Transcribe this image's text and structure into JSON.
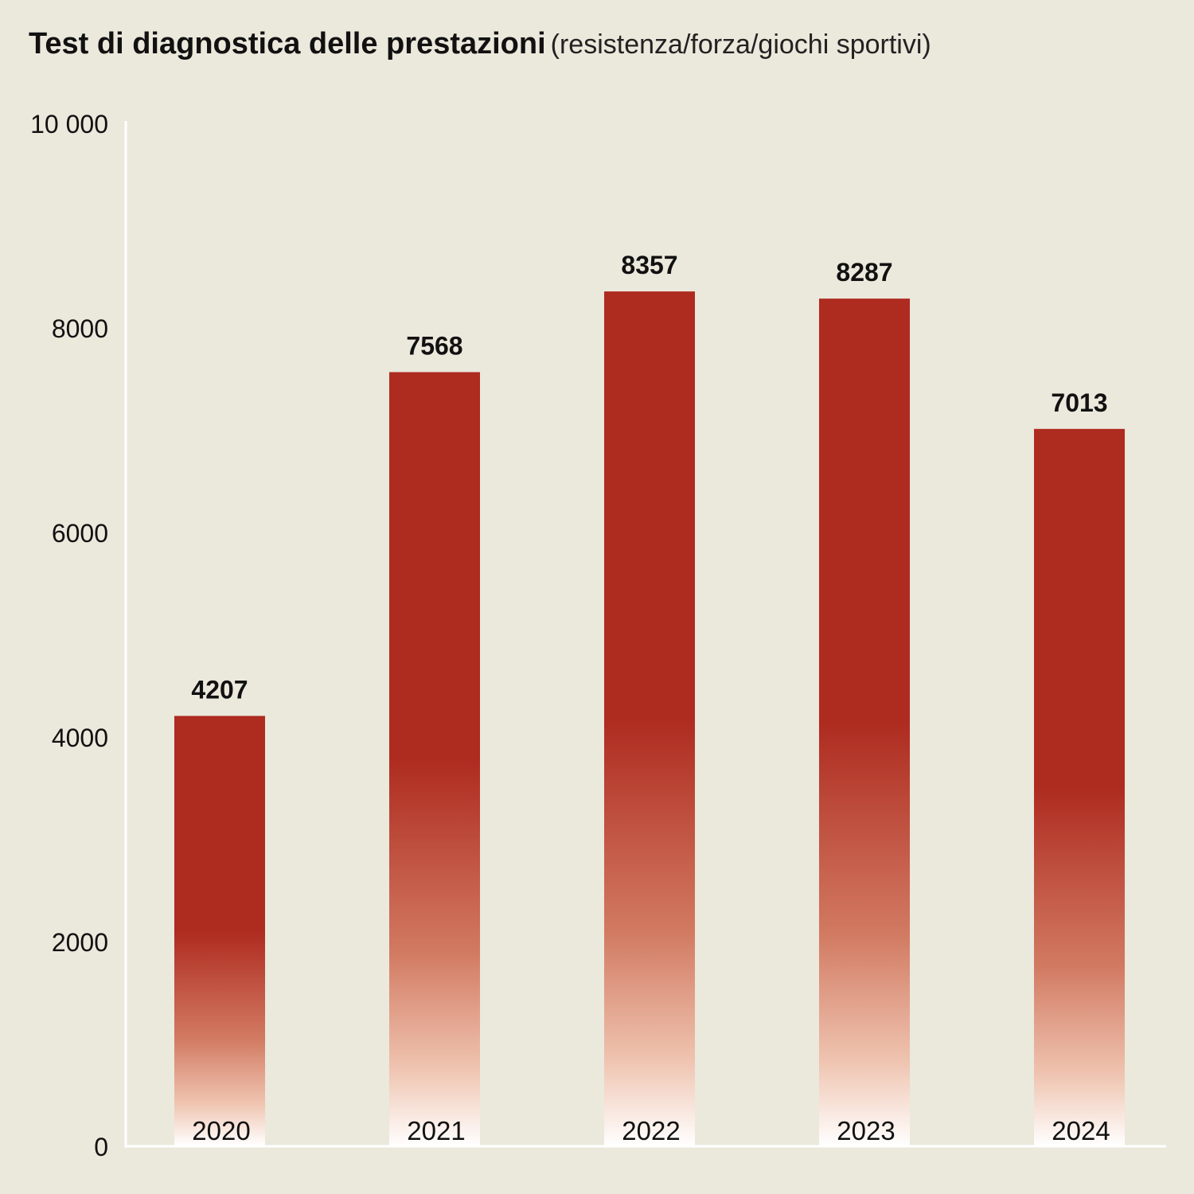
{
  "chart_data": {
    "type": "bar",
    "title": "Test di diagnostica delle prestazioni",
    "subtitle": "(resistenza/forza/giochi sportivi)",
    "categories": [
      "2020",
      "2021",
      "2022",
      "2023",
      "2024"
    ],
    "values": [
      4207,
      7568,
      8357,
      8287,
      7013
    ],
    "ylim": [
      0,
      10000
    ],
    "yticks": [
      0,
      2000,
      4000,
      6000,
      8000,
      10000
    ],
    "ytick_labels": [
      "0",
      "2000",
      "4000",
      "6000",
      "8000",
      "10 000"
    ],
    "xlabel": "",
    "ylabel": "",
    "grid": false,
    "legend": "none",
    "colors": {
      "bar": "#ae2b20",
      "bar_fade": "#ffffff",
      "axis": "#ffffff",
      "background": "#ebe8dc"
    }
  }
}
